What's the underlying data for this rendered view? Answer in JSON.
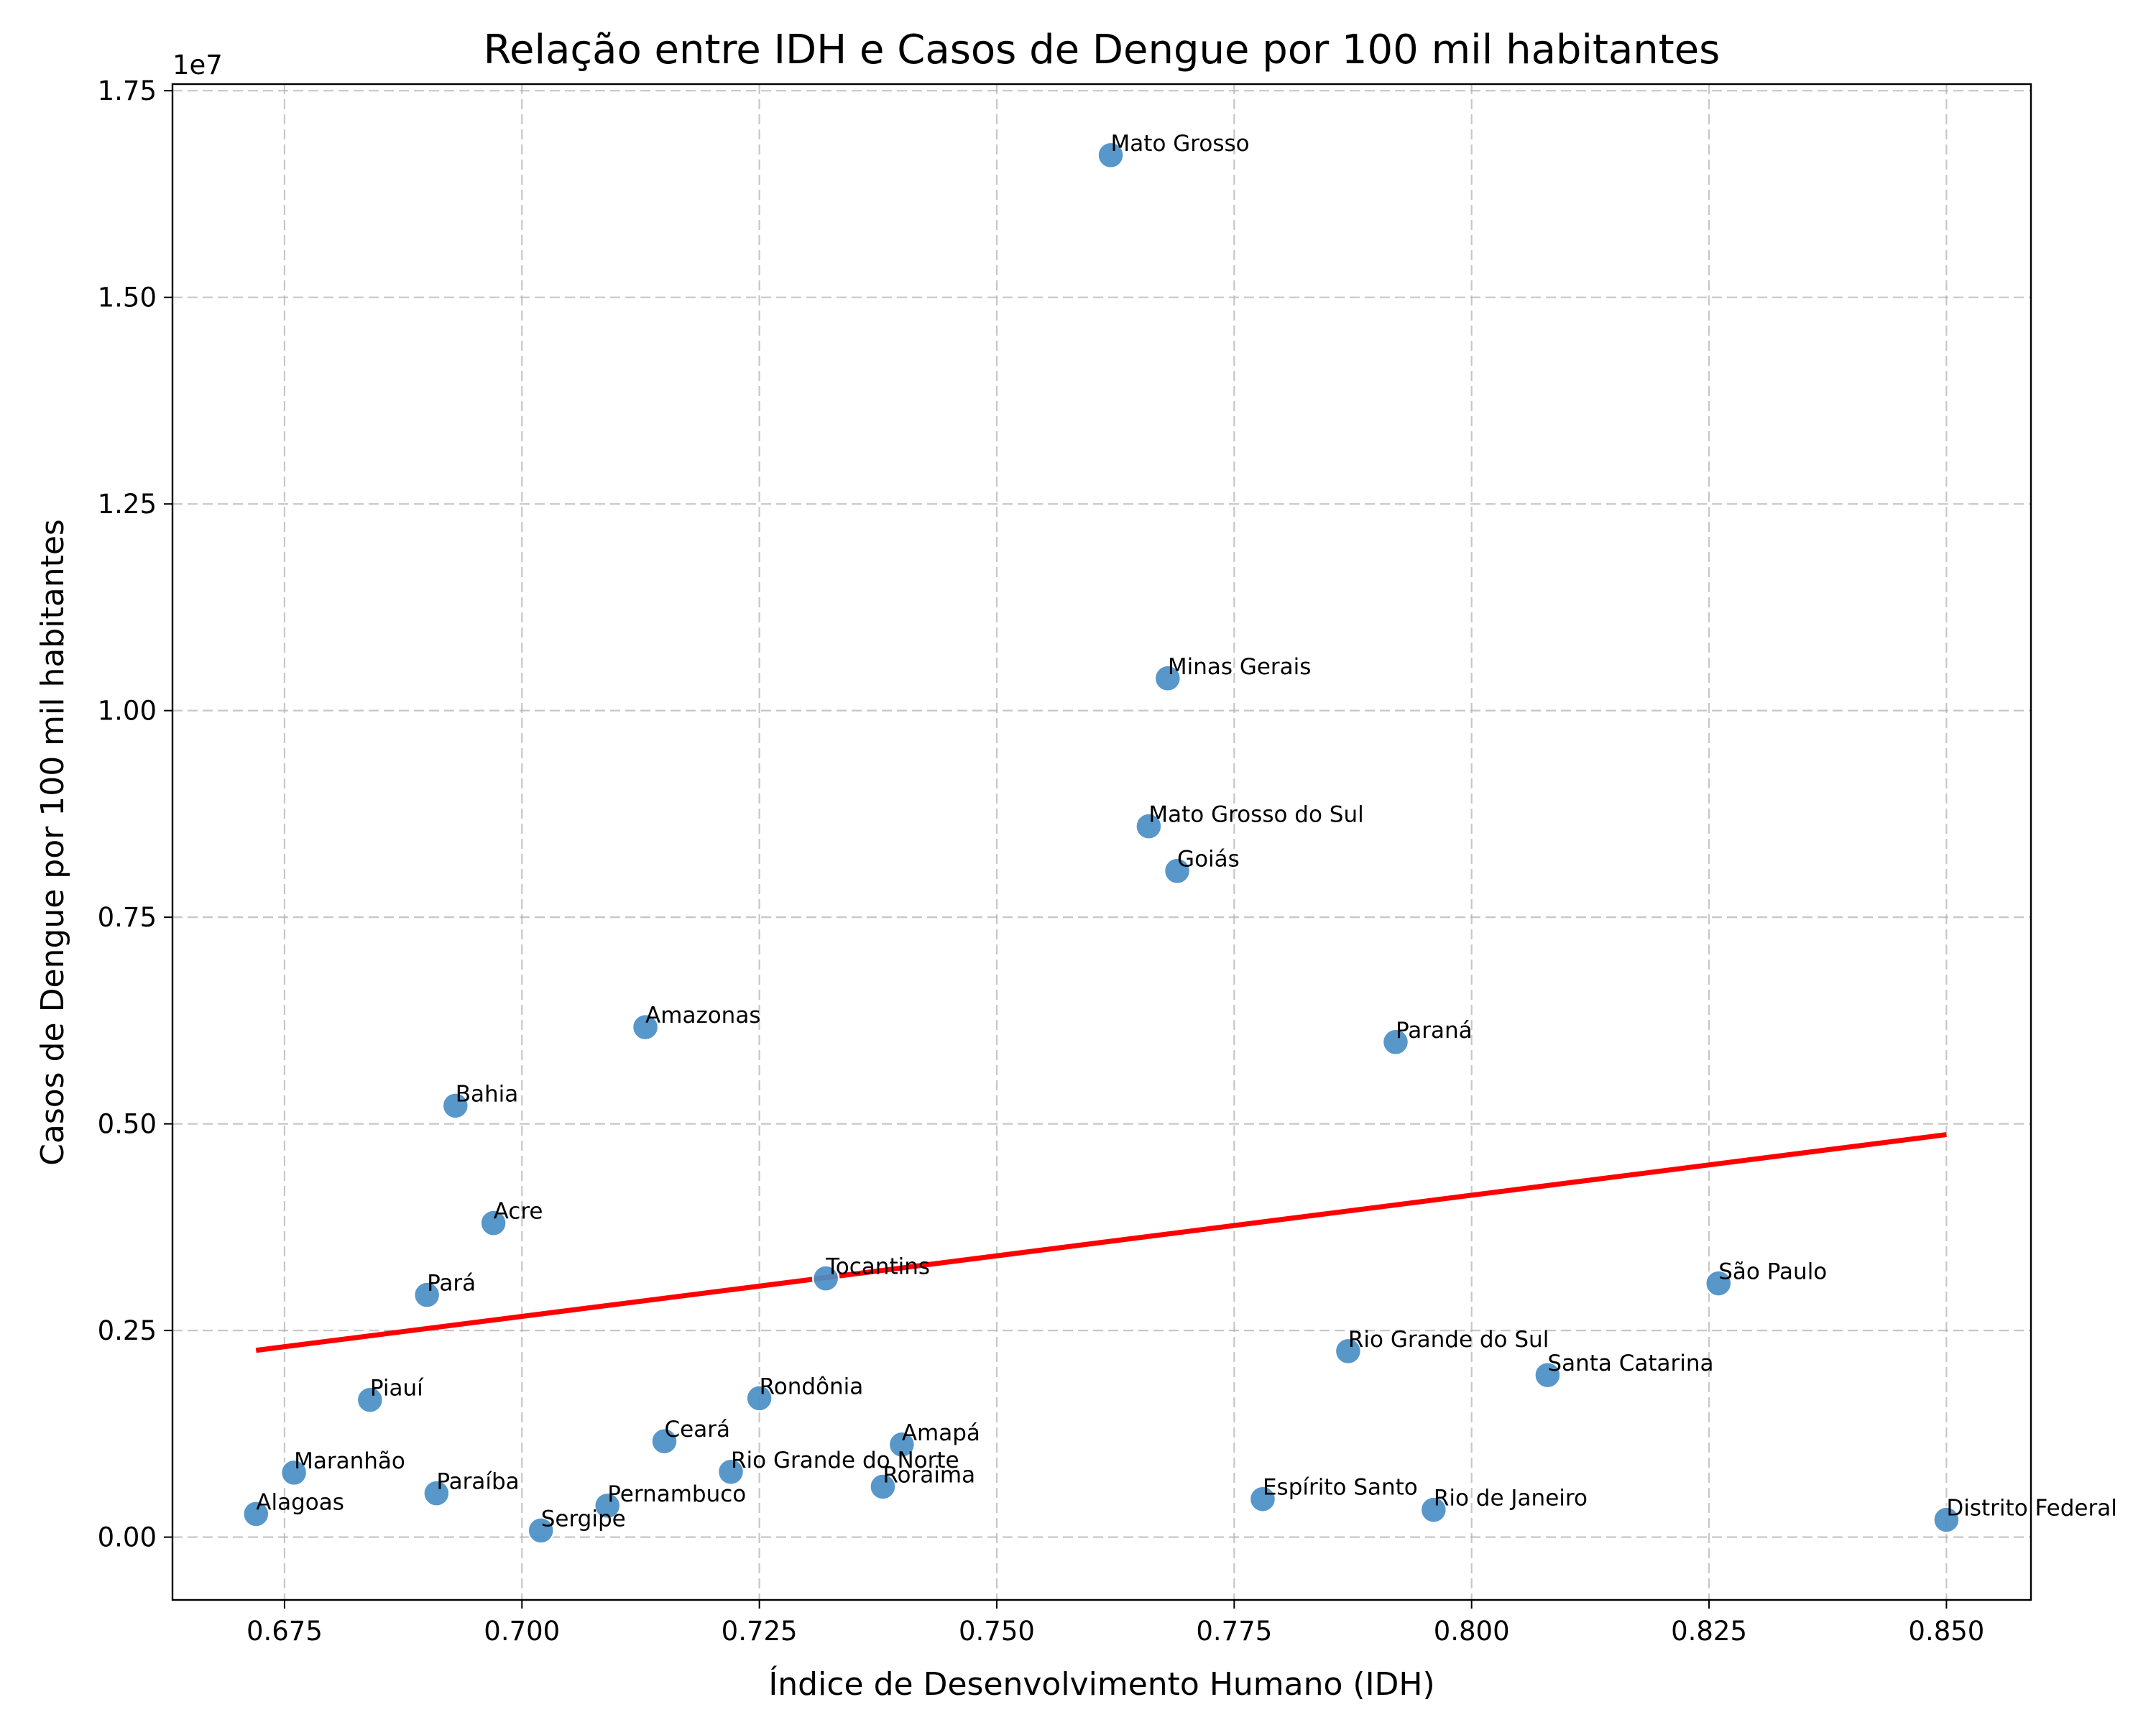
{
  "chart_data": {
    "type": "scatter",
    "title": "Relação entre IDH e Casos de Dengue por 100 mil habitantes",
    "xlabel": "Índice de Desenvolvimento Humano (IDH)",
    "ylabel": "Casos de Dengue por 100 mil habitantes",
    "y_offset_label": "1e7",
    "xlim": [
      0.6632,
      0.8589
    ],
    "ylim": [
      -760000,
      17580000
    ],
    "xticks": [
      0.675,
      0.7,
      0.725,
      0.75,
      0.775,
      0.8,
      0.825,
      0.85
    ],
    "xtick_labels": [
      "0.675",
      "0.700",
      "0.725",
      "0.750",
      "0.775",
      "0.800",
      "0.825",
      "0.850"
    ],
    "yticks": [
      0,
      2500000,
      5000000,
      7500000,
      10000000,
      12500000,
      15000000,
      17500000
    ],
    "ytick_labels": [
      "0.00",
      "0.25",
      "0.50",
      "0.75",
      "1.00",
      "1.25",
      "1.50",
      "1.75"
    ],
    "grid": true,
    "point_color": "#4a8ec6",
    "trend_color": "#ff0000",
    "points": [
      {
        "label": "Alagoas",
        "x": 0.672,
        "y": 280000
      },
      {
        "label": "Maranhão",
        "x": 0.676,
        "y": 780000
      },
      {
        "label": "Piauí",
        "x": 0.684,
        "y": 1660000
      },
      {
        "label": "Pará",
        "x": 0.69,
        "y": 2930000
      },
      {
        "label": "Paraíba",
        "x": 0.691,
        "y": 530000
      },
      {
        "label": "Bahia",
        "x": 0.693,
        "y": 5220000
      },
      {
        "label": "Acre",
        "x": 0.697,
        "y": 3800000
      },
      {
        "label": "Sergipe",
        "x": 0.702,
        "y": 80000
      },
      {
        "label": "Pernambuco",
        "x": 0.709,
        "y": 380000
      },
      {
        "label": "Amazonas",
        "x": 0.713,
        "y": 6170000
      },
      {
        "label": "Ceará",
        "x": 0.715,
        "y": 1160000
      },
      {
        "label": "Rio Grande do Norte",
        "x": 0.722,
        "y": 790000
      },
      {
        "label": "Rondônia",
        "x": 0.725,
        "y": 1680000
      },
      {
        "label": "Tocantins",
        "x": 0.732,
        "y": 3130000
      },
      {
        "label": "Roraima",
        "x": 0.738,
        "y": 610000
      },
      {
        "label": "Amapá",
        "x": 0.74,
        "y": 1120000
      },
      {
        "label": "Mato Grosso",
        "x": 0.762,
        "y": 16720000
      },
      {
        "label": "Mato Grosso do Sul",
        "x": 0.766,
        "y": 8600000
      },
      {
        "label": "Minas Gerais",
        "x": 0.768,
        "y": 10390000
      },
      {
        "label": "Goiás",
        "x": 0.769,
        "y": 8060000
      },
      {
        "label": "Espírito Santo",
        "x": 0.778,
        "y": 460000
      },
      {
        "label": "Rio Grande do Sul",
        "x": 0.787,
        "y": 2250000
      },
      {
        "label": "Paraná",
        "x": 0.792,
        "y": 5990000
      },
      {
        "label": "Rio de Janeiro",
        "x": 0.796,
        "y": 330000
      },
      {
        "label": "Santa Catarina",
        "x": 0.808,
        "y": 1960000
      },
      {
        "label": "São Paulo",
        "x": 0.826,
        "y": 3070000
      },
      {
        "label": "Distrito Federal",
        "x": 0.85,
        "y": 210000
      }
    ],
    "trend_line": {
      "x": [
        0.672,
        0.85
      ],
      "y": [
        2260000,
        4870000
      ]
    }
  }
}
